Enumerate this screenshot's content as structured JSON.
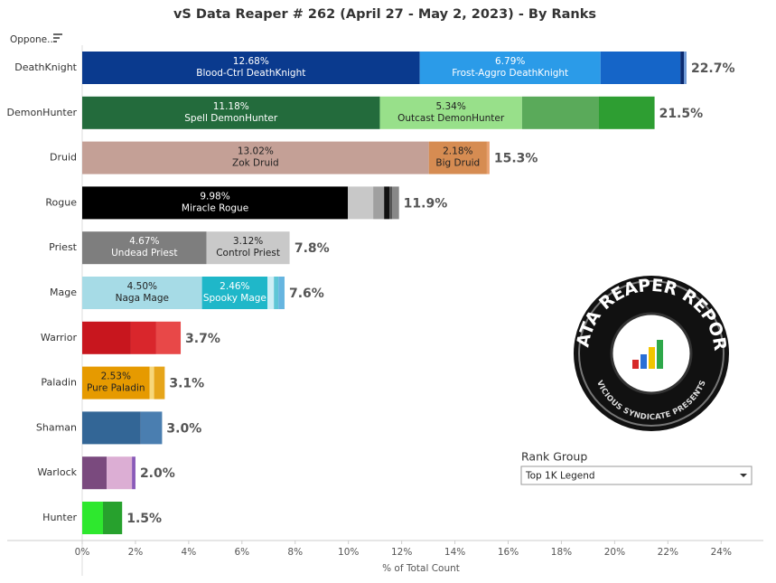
{
  "chart_data": {
    "type": "stacked-bar-horizontal",
    "title": "vS Data Reaper #  262 (April 27 - May 2, 2023) - By Ranks",
    "sort_label": "Oppone..",
    "x_label": "% of Total Count",
    "xlim": [
      0,
      24.5
    ],
    "xticks": [
      {
        "value": 0,
        "label": "0%"
      },
      {
        "value": 2,
        "label": "2%"
      },
      {
        "value": 4,
        "label": "4%"
      },
      {
        "value": 6,
        "label": "6%"
      },
      {
        "value": 8,
        "label": "8%"
      },
      {
        "value": 10,
        "label": "10%"
      },
      {
        "value": 12,
        "label": "12%"
      },
      {
        "value": 14,
        "label": "14%"
      },
      {
        "value": 16,
        "label": "16%"
      },
      {
        "value": 18,
        "label": "18%"
      },
      {
        "value": 20,
        "label": "20%"
      },
      {
        "value": 22,
        "label": "22%"
      },
      {
        "value": 24,
        "label": "24%"
      }
    ],
    "filter": {
      "label": "Rank Group",
      "value": "Top 1K Legend"
    },
    "logo": {
      "title": "DATA REAPER REPORT",
      "subtitle": "VICIOUS SYNDICATE PRESENTS"
    },
    "bars": [
      {
        "category": "DeathKnight",
        "total": 22.7,
        "total_label": "22.7%",
        "segments": [
          {
            "name": "Blood-Ctrl DeathKnight",
            "value": 12.68,
            "value_label": "12.68%",
            "color": "#0a3a8e"
          },
          {
            "name": "Frost-Aggro DeathKnight",
            "value": 6.79,
            "value_label": "6.79%",
            "color": "#2b9be8"
          },
          {
            "value": 3.0,
            "color": "#1565c8"
          },
          {
            "value": 0.13,
            "color": "#0a2a70"
          },
          {
            "value": 0.1,
            "color": "#6f9ad6"
          }
        ]
      },
      {
        "category": "DemonHunter",
        "total": 21.5,
        "total_label": "21.5%",
        "segments": [
          {
            "name": "Spell DemonHunter",
            "value": 11.18,
            "value_label": "11.18%",
            "color": "#236b3c"
          },
          {
            "name": "Outcast DemonHunter",
            "value": 5.34,
            "value_label": "5.34%",
            "color": "#98e08a"
          },
          {
            "value": 2.89,
            "color": "#5aaa5a"
          },
          {
            "value": 2.09,
            "color": "#2e9e32"
          }
        ]
      },
      {
        "category": "Druid",
        "total": 15.3,
        "total_label": "15.3%",
        "segments": [
          {
            "name": "Zok Druid",
            "value": 13.02,
            "value_label": "13.02%",
            "color": "#c4a096"
          },
          {
            "name": "Big Druid",
            "value": 2.18,
            "value_label": "2.18%",
            "color": "#d68c52"
          },
          {
            "value": 0.1,
            "color": "#e8a070"
          }
        ]
      },
      {
        "category": "Rogue",
        "total": 11.9,
        "total_label": "11.9%",
        "segments": [
          {
            "name": "Miracle Rogue",
            "value": 9.98,
            "value_label": "9.98%",
            "color": "#000000"
          },
          {
            "value": 0.95,
            "color": "#c8c8c8"
          },
          {
            "value": 0.41,
            "color": "#a0a0a0"
          },
          {
            "value": 0.2,
            "color": "#111111"
          },
          {
            "value": 0.1,
            "color": "#555555"
          },
          {
            "value": 0.26,
            "color": "#888888"
          }
        ]
      },
      {
        "category": "Priest",
        "total": 7.8,
        "total_label": "7.8%",
        "segments": [
          {
            "name": "Undead Priest",
            "value": 4.67,
            "value_label": "4.67%",
            "color": "#7e7e7e"
          },
          {
            "name": "Control Priest",
            "value": 3.12,
            "value_label": "3.12%",
            "color": "#c9c9c9"
          }
        ]
      },
      {
        "category": "Mage",
        "total": 7.6,
        "total_label": "7.6%",
        "segments": [
          {
            "name": "Naga Mage",
            "value": 4.5,
            "value_label": "4.50%",
            "color": "#a6dbe6"
          },
          {
            "name": "Spooky Mage",
            "value": 2.46,
            "value_label": "2.46%",
            "color": "#1fb7c9"
          },
          {
            "value": 0.24,
            "color": "#cdeef5"
          },
          {
            "value": 0.17,
            "color": "#5ec6d6"
          },
          {
            "value": 0.23,
            "color": "#66b5e0"
          }
        ]
      },
      {
        "category": "Warrior",
        "total": 3.7,
        "total_label": "3.7%",
        "segments": [
          {
            "value": 1.83,
            "color": "#c8161e"
          },
          {
            "value": 0.95,
            "color": "#d9262c"
          },
          {
            "value": 0.92,
            "color": "#e84848"
          }
        ]
      },
      {
        "category": "Paladin",
        "total": 3.1,
        "total_label": "3.1%",
        "segments": [
          {
            "name": "Pure Paladin",
            "value": 2.53,
            "value_label": "2.53%",
            "color": "#e69a00"
          },
          {
            "value": 0.17,
            "color": "#f7d77a"
          },
          {
            "value": 0.4,
            "color": "#e6a51a"
          }
        ]
      },
      {
        "category": "Shaman",
        "total": 3.0,
        "total_label": "3.0%",
        "segments": [
          {
            "value": 2.2,
            "color": "#336696"
          },
          {
            "value": 0.8,
            "color": "#4a7eb0"
          }
        ]
      },
      {
        "category": "Warlock",
        "total": 2.0,
        "total_label": "2.0%",
        "segments": [
          {
            "value": 0.92,
            "color": "#7a4a7e"
          },
          {
            "value": 0.95,
            "color": "#dcaed4"
          },
          {
            "value": 0.13,
            "color": "#8a5ab8"
          }
        ]
      },
      {
        "category": "Hunter",
        "total": 1.5,
        "total_label": "1.5%",
        "segments": [
          {
            "value": 0.78,
            "color": "#2ee82e"
          },
          {
            "value": 0.72,
            "color": "#27a12d"
          }
        ]
      }
    ]
  }
}
